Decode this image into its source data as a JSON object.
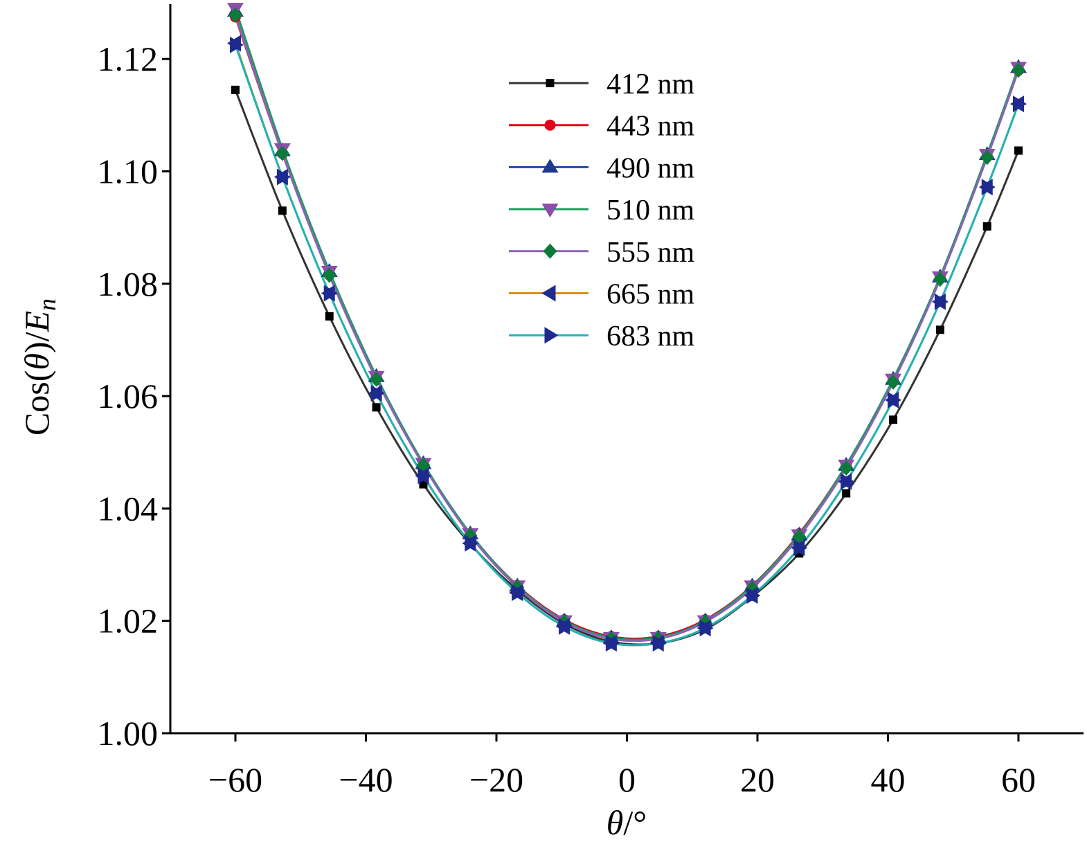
{
  "chart_data": {
    "type": "line",
    "xlabel": {
      "symbol": "θ",
      "unit": "/°"
    },
    "ylabel": {
      "prefix": "Cos(",
      "symbol": "θ",
      "middle": ")/",
      "var": "E",
      "sub": "n"
    },
    "xlim": [
      -70,
      70
    ],
    "ylim": [
      1.0,
      1.13
    ],
    "xticks": [
      -60,
      -40,
      -20,
      0,
      20,
      40,
      60
    ],
    "xtick_labels": [
      "−60",
      "−40",
      "−20",
      "0",
      "20",
      "40",
      "60"
    ],
    "yticks": [
      1.0,
      1.02,
      1.04,
      1.06,
      1.08,
      1.1,
      1.12
    ],
    "ytick_labels": [
      "1.00",
      "1.02",
      "1.04",
      "1.06",
      "1.08",
      "1.10",
      "1.12"
    ],
    "x": [
      -60,
      -52.8,
      -45.6,
      -38.4,
      -31.2,
      -24,
      -16.8,
      -9.6,
      -2.4,
      4.8,
      12,
      19.2,
      26.4,
      33.6,
      40.8,
      48,
      55.2,
      60
    ],
    "series": [
      {
        "name": "412 nm",
        "color": "#333333",
        "marker": "square",
        "values": [
          1.1145,
          1.093,
          1.0742,
          1.058,
          1.0443,
          1.0337,
          1.0255,
          1.0195,
          1.0163,
          1.016,
          1.0185,
          1.0243,
          1.032,
          1.0427,
          1.0558,
          1.0718,
          1.0902,
          1.1037
        ]
      },
      {
        "name": "443 nm",
        "color": "#e3001b",
        "marker": "circle",
        "values": [
          1.1275,
          1.1032,
          1.0818,
          1.0633,
          1.048,
          1.0355,
          1.0263,
          1.0202,
          1.0172,
          1.0172,
          1.0202,
          1.0263,
          1.0355,
          1.0477,
          1.0628,
          1.0812,
          1.1027,
          1.118
        ]
      },
      {
        "name": "490 nm",
        "color": "#1f4aa8",
        "marker": "triangle-up",
        "values": [
          1.1285,
          1.1037,
          1.0822,
          1.0635,
          1.048,
          1.0355,
          1.0262,
          1.02,
          1.017,
          1.017,
          1.02,
          1.0262,
          1.0353,
          1.0477,
          1.063,
          1.0812,
          1.103,
          1.1185
        ]
      },
      {
        "name": "510 nm",
        "color": "#1f9c5a",
        "marker": "triangle-down",
        "values": [
          1.129,
          1.104,
          1.0822,
          1.0635,
          1.048,
          1.0355,
          1.0262,
          1.02,
          1.017,
          1.017,
          1.02,
          1.0262,
          1.0353,
          1.0477,
          1.063,
          1.0812,
          1.103,
          1.1185
        ]
      },
      {
        "name": "555 nm",
        "color": "#8a63b8",
        "marker": "diamond",
        "values": [
          1.1278,
          1.1032,
          1.0815,
          1.063,
          1.0477,
          1.0352,
          1.026,
          1.0198,
          1.0168,
          1.0168,
          1.0198,
          1.0258,
          1.035,
          1.0472,
          1.0625,
          1.0808,
          1.1025,
          1.118
        ]
      },
      {
        "name": "665 nm",
        "color": "#d4900e",
        "marker": "triangle-left",
        "values": [
          1.1228,
          1.099,
          1.0783,
          1.0605,
          1.0458,
          1.0338,
          1.025,
          1.019,
          1.016,
          1.016,
          1.0187,
          1.0245,
          1.033,
          1.0448,
          1.0593,
          1.0768,
          1.0972,
          1.112
        ]
      },
      {
        "name": "683 nm",
        "color": "#20b2b8",
        "marker": "triangle-right",
        "values": [
          1.1225,
          1.099,
          1.0783,
          1.0605,
          1.0458,
          1.0338,
          1.025,
          1.019,
          1.016,
          1.016,
          1.0187,
          1.0245,
          1.033,
          1.0448,
          1.0593,
          1.0768,
          1.0972,
          1.112
        ]
      }
    ],
    "marker_fills": {
      "square": "#000000",
      "circle": "#e3001b",
      "triangle-up": "#1f3a8f",
      "triangle-down": "#8a4fa8",
      "diamond": "#0e7a3a",
      "triangle-left": "#1f2a8f",
      "triangle-right": "#1f2a8f"
    },
    "legend_position": "top-center",
    "grid": false
  }
}
